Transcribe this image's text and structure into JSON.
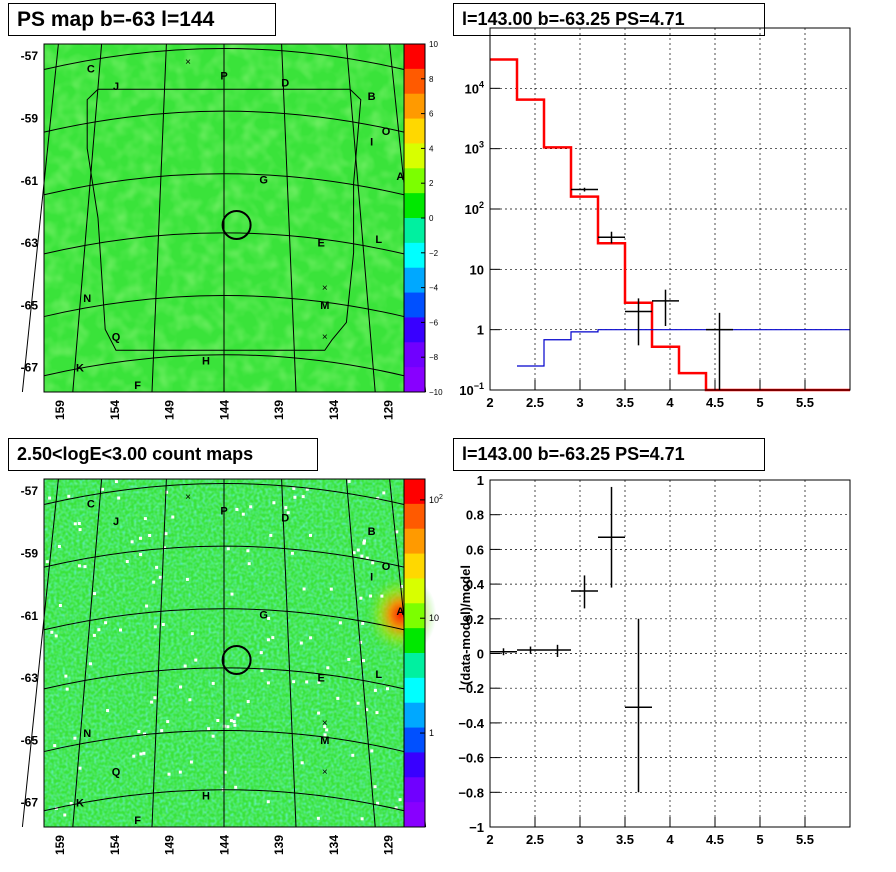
{
  "panels": {
    "tl_title": "PS map b=-63 l=144",
    "tr_title": "l=143.00 b=-63.25 PS=4.71",
    "bl_title": "2.50<logE<3.00 count maps",
    "br_title": "l=143.00 b=-63.25 PS=4.71"
  },
  "chart_data": [
    {
      "type": "heatmap",
      "title": "PS map b=-63 l=144",
      "x_ticks": [
        "159",
        "154",
        "149",
        "144",
        "139",
        "134",
        "129"
      ],
      "y_ticks": [
        "-57",
        "-59",
        "-61",
        "-63",
        "-65",
        "-67"
      ],
      "colorbar": {
        "min": -10,
        "max": 10,
        "ticks": [
          "10",
          "8",
          "6",
          "4",
          "2",
          "0",
          "−2",
          "−4",
          "−6",
          "−8",
          "−10"
        ]
      },
      "source_labels": [
        "C",
        "J",
        "P",
        "D",
        "B",
        "O",
        "I",
        "A",
        "G",
        "E",
        "L",
        "N",
        "M",
        "Q",
        "H",
        "K",
        "F"
      ],
      "background_color": "#3ae33a"
    },
    {
      "type": "line",
      "title": "l=143.00 b=-63.25 PS=4.71",
      "xlim": [
        2,
        6
      ],
      "ylim": [
        0.1,
        100000
      ],
      "yscale": "log",
      "x_ticks": [
        "2",
        "2.5",
        "3",
        "3.5",
        "4",
        "4.5",
        "5",
        "5.5"
      ],
      "y_ticks": [
        {
          "v": 0.1,
          "base": "10",
          "exp": "−1"
        },
        {
          "v": 1,
          "label": "1"
        },
        {
          "v": 10,
          "label": "10"
        },
        {
          "v": 100,
          "base": "10",
          "exp": "2"
        },
        {
          "v": 1000,
          "base": "10",
          "exp": "3"
        },
        {
          "v": 10000,
          "base": "10",
          "exp": "4"
        }
      ],
      "grid": true,
      "series": [
        {
          "style": "step",
          "color": "#ff0000",
          "edges": [
            2,
            2.3,
            2.6,
            2.9,
            3.2,
            3.5,
            3.8,
            4.1,
            4.4,
            6
          ],
          "values": [
            30000,
            6500,
            1050,
            160,
            27,
            2.8,
            0.52,
            0.19,
            0.1
          ]
        },
        {
          "style": "step",
          "color": "#0000cc",
          "edges": [
            2.3,
            2.6,
            2.9,
            3.2,
            6
          ],
          "values": [
            0.25,
            0.68,
            0.92,
            1.0
          ]
        },
        {
          "style": "errorbar",
          "color": "#000000",
          "points": [
            {
              "x": 3.05,
              "xerr": 0.15,
              "y": 210,
              "ylo": 195,
              "yhi": 225
            },
            {
              "x": 3.35,
              "xerr": 0.15,
              "y": 34,
              "ylo": 27,
              "yhi": 42
            },
            {
              "x": 3.65,
              "xerr": 0.15,
              "y": 2.0,
              "ylo": 0.55,
              "yhi": 3.3
            },
            {
              "x": 3.95,
              "xerr": 0.15,
              "y": 3.0,
              "ylo": 1.15,
              "yhi": 4.6
            },
            {
              "x": 4.55,
              "xerr": 0.15,
              "y": 1.0,
              "ylo": 0.1,
              "yhi": 1.9
            }
          ]
        }
      ]
    },
    {
      "type": "heatmap",
      "title": "2.50<logE<3.00 count maps",
      "x_ticks": [
        "159",
        "154",
        "149",
        "144",
        "139",
        "134",
        "129"
      ],
      "y_ticks": [
        "-57",
        "-59",
        "-61",
        "-63",
        "-65",
        "-67"
      ],
      "colorbar": {
        "scale": "log",
        "ticks": [
          {
            "base": "10",
            "exp": "2"
          },
          {
            "label": "10"
          },
          {
            "label": "1"
          }
        ]
      },
      "source_labels": [
        "C",
        "J",
        "P",
        "D",
        "B",
        "O",
        "I",
        "A",
        "G",
        "E",
        "L",
        "N",
        "M",
        "Q",
        "H",
        "K",
        "F"
      ],
      "background_color": "#3ae33a"
    },
    {
      "type": "scatter",
      "title": "l=143.00 b=-63.25 PS=4.71",
      "ylabel": "(data-model)/model",
      "xlim": [
        2,
        6
      ],
      "ylim": [
        -1,
        1
      ],
      "x_ticks": [
        "2",
        "2.5",
        "3",
        "3.5",
        "4",
        "4.5",
        "5",
        "5.5"
      ],
      "y_ticks": [
        "1",
        "0.8",
        "0.6",
        "0.4",
        "0.2",
        "0",
        "−0.2",
        "−0.4",
        "−0.6",
        "−0.8",
        "−1"
      ],
      "grid": true,
      "points": [
        {
          "x": 2.15,
          "xerr": 0.15,
          "y": 0.01,
          "ylo": -0.01,
          "yhi": 0.03
        },
        {
          "x": 2.45,
          "xerr": 0.15,
          "y": 0.02,
          "ylo": 0.0,
          "yhi": 0.04
        },
        {
          "x": 2.75,
          "xerr": 0.15,
          "y": 0.02,
          "ylo": -0.02,
          "yhi": 0.05
        },
        {
          "x": 3.05,
          "xerr": 0.15,
          "y": 0.36,
          "ylo": 0.26,
          "yhi": 0.45
        },
        {
          "x": 3.35,
          "xerr": 0.15,
          "y": 0.67,
          "ylo": 0.38,
          "yhi": 0.96
        },
        {
          "x": 3.65,
          "xerr": 0.15,
          "y": -0.31,
          "ylo": -0.8,
          "yhi": 0.2
        }
      ]
    }
  ]
}
